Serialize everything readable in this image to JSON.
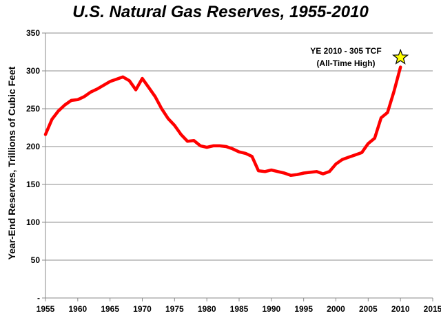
{
  "chart_data": {
    "type": "line",
    "title": "U.S. Natural Gas Reserves, 1955-2010",
    "xlabel": "",
    "ylabel": "Year-End Reserves, Trillions of Cubic Feet",
    "xlim": [
      1955,
      2015
    ],
    "ylim": [
      0,
      350
    ],
    "x_ticks": [
      1955,
      1960,
      1965,
      1970,
      1975,
      1980,
      1985,
      1990,
      1995,
      2000,
      2005,
      2010,
      2015
    ],
    "y_ticks": [
      0,
      50,
      100,
      150,
      200,
      250,
      300,
      350
    ],
    "y_tick_labels": [
      "-",
      "50",
      "100",
      "150",
      "200",
      "250",
      "300",
      "350"
    ],
    "grid": true,
    "series": [
      {
        "name": "U.S. Natural Gas Reserves",
        "color": "#ff0000",
        "x": [
          1955,
          1956,
          1957,
          1958,
          1959,
          1960,
          1961,
          1962,
          1963,
          1964,
          1965,
          1966,
          1967,
          1968,
          1969,
          1970,
          1971,
          1972,
          1973,
          1974,
          1975,
          1976,
          1977,
          1978,
          1979,
          1980,
          1981,
          1982,
          1983,
          1984,
          1985,
          1986,
          1987,
          1988,
          1989,
          1990,
          1991,
          1992,
          1993,
          1994,
          1995,
          1996,
          1997,
          1998,
          1999,
          2000,
          2001,
          2002,
          2003,
          2004,
          2005,
          2006,
          2007,
          2008,
          2009,
          2010
        ],
        "values": [
          216,
          236,
          247,
          255,
          261,
          262,
          266,
          272,
          276,
          281,
          286,
          289,
          292,
          287,
          275,
          290,
          278,
          266,
          250,
          237,
          228,
          216,
          207,
          208,
          201,
          199,
          201,
          201,
          200,
          197,
          193,
          191,
          187,
          168,
          167,
          169,
          167,
          165,
          162,
          163,
          165,
          166,
          167,
          164,
          167,
          177,
          183,
          186,
          189,
          192,
          204,
          211,
          238,
          245,
          273,
          305
        ]
      }
    ],
    "annotation": {
      "line1": "YE 2010 - 305 TCF",
      "line2": "(All-Time High)",
      "x": 2010,
      "y": 305,
      "marker": "star",
      "marker_color": "#ffff00"
    }
  }
}
